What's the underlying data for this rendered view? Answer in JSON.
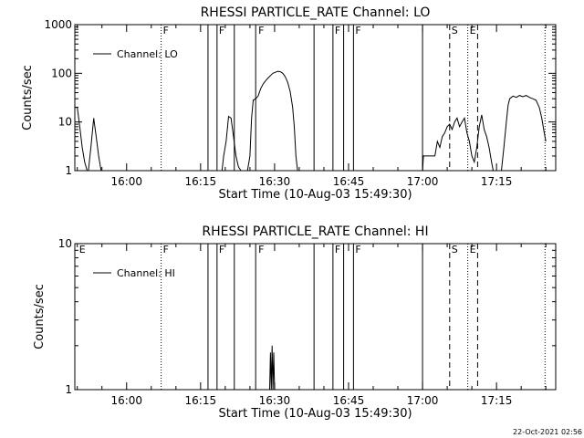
{
  "footer_timestamp": "22-Oct-2021 02:56",
  "chart_data": [
    {
      "type": "line",
      "title": "RHESSI PARTICLE_RATE Channel: LO",
      "xlabel": "Start Time (10-Aug-03 15:49:30)",
      "ylabel": "Counts/sec",
      "y_scale": "log",
      "ylim": [
        1,
        1000
      ],
      "x_range": [
        "15:49:30",
        "17:27:00"
      ],
      "x_ticks": [
        "16:00",
        "16:15",
        "16:30",
        "16:45",
        "17:00",
        "17:15"
      ],
      "y_ticks": [
        "1",
        "10",
        "100",
        "1000"
      ],
      "legend": "Channel: LO",
      "legend_position": "top-left",
      "series": [
        {
          "name": "Channel: LO",
          "segments": [
            [
              [
                "15:49:30",
                20
              ],
              [
                "15:50:00",
                20
              ],
              [
                "15:50:30",
                8
              ],
              [
                "15:51:00",
                3
              ],
              [
                "15:51:30",
                1.5
              ],
              [
                "15:52:00",
                1
              ]
            ],
            [
              [
                "15:52:15",
                1
              ],
              [
                "15:52:45",
                3
              ],
              [
                "15:53:20",
                12
              ],
              [
                "15:53:50",
                5
              ],
              [
                "15:54:20",
                2
              ],
              [
                "15:54:50",
                1
              ]
            ],
            [
              [
                "16:19:20",
                1
              ],
              [
                "16:19:40",
                2
              ],
              [
                "16:20:10",
                4
              ],
              [
                "16:20:40",
                13
              ],
              [
                "16:21:10",
                12
              ],
              [
                "16:21:40",
                5
              ],
              [
                "16:22:10",
                2
              ],
              [
                "16:22:40",
                1.2
              ],
              [
                "16:23:10",
                1
              ]
            ],
            [
              [
                "16:24:30",
                1
              ],
              [
                "16:25:00",
                2
              ],
              [
                "16:25:20",
                12
              ],
              [
                "16:25:40",
                28
              ],
              [
                "16:26:10",
                30
              ],
              [
                "16:26:40",
                34
              ],
              [
                "16:27:10",
                48
              ],
              [
                "16:27:40",
                60
              ],
              [
                "16:28:10",
                70
              ],
              [
                "16:28:40",
                80
              ],
              [
                "16:29:10",
                90
              ],
              [
                "16:29:40",
                100
              ],
              [
                "16:30:10",
                105
              ],
              [
                "16:30:40",
                110
              ],
              [
                "16:31:10",
                108
              ],
              [
                "16:31:40",
                100
              ],
              [
                "16:32:10",
                85
              ],
              [
                "16:32:40",
                65
              ],
              [
                "16:33:10",
                42
              ],
              [
                "16:33:40",
                20
              ],
              [
                "16:34:00",
                8
              ],
              [
                "16:34:20",
                2
              ],
              [
                "16:34:40",
                1
              ]
            ],
            [
              [
                "17:00:00",
                1
              ],
              [
                "17:00:10",
                2
              ],
              [
                "17:01:30",
                2
              ],
              [
                "17:02:30",
                2
              ],
              [
                "17:03:00",
                4
              ],
              [
                "17:03:30",
                3
              ],
              [
                "17:04:00",
                5
              ],
              [
                "17:04:30",
                6
              ],
              [
                "17:05:00",
                8
              ],
              [
                "17:05:30",
                9
              ],
              [
                "17:06:00",
                7
              ],
              [
                "17:06:30",
                10
              ],
              [
                "17:07:00",
                12
              ],
              [
                "17:07:30",
                8
              ],
              [
                "17:08:00",
                10
              ],
              [
                "17:08:30",
                12
              ],
              [
                "17:09:00",
                6
              ],
              [
                "17:09:30",
                4
              ],
              [
                "17:10:00",
                2
              ],
              [
                "17:10:30",
                1.5
              ],
              [
                "17:11:00",
                3
              ],
              [
                "17:11:30",
                8
              ],
              [
                "17:12:00",
                14
              ],
              [
                "17:12:30",
                7
              ],
              [
                "17:13:00",
                5
              ],
              [
                "17:13:30",
                3
              ],
              [
                "17:14:00",
                1.5
              ],
              [
                "17:14:20",
                1
              ]
            ],
            [
              [
                "17:16:00",
                1
              ],
              [
                "17:16:30",
                3
              ],
              [
                "17:17:00",
                10
              ],
              [
                "17:17:20",
                22
              ],
              [
                "17:17:40",
                30
              ],
              [
                "17:18:20",
                34
              ],
              [
                "17:19:00",
                32
              ],
              [
                "17:19:40",
                35
              ],
              [
                "17:20:20",
                33
              ],
              [
                "17:21:00",
                35
              ],
              [
                "17:21:40",
                32
              ],
              [
                "17:22:20",
                30
              ],
              [
                "17:23:00",
                28
              ],
              [
                "17:23:40",
                20
              ],
              [
                "17:24:10",
                12
              ],
              [
                "17:24:40",
                6
              ],
              [
                "17:25:00",
                4
              ]
            ]
          ]
        }
      ],
      "flags": [
        {
          "label": "F",
          "time": "16:07:00"
        },
        {
          "label": "F",
          "time": "16:18:20"
        },
        {
          "label": "F",
          "time": "16:26:20"
        },
        {
          "label": "F",
          "time": "16:41:50"
        },
        {
          "label": "F",
          "time": "16:46:00"
        },
        {
          "label": "S",
          "time": "17:05:30"
        },
        {
          "label": "E",
          "time": "17:09:10"
        }
      ],
      "vertical_lines": {
        "solid": [
          "16:16:30",
          "16:18:20",
          "16:21:50",
          "16:26:10",
          "16:38:00",
          "16:41:50",
          "16:44:00",
          "16:46:00",
          "17:00:00"
        ],
        "dashed": [
          "17:05:30",
          "17:11:10"
        ],
        "dotted": [
          "16:07:00",
          "17:09:10",
          "17:24:50"
        ]
      }
    },
    {
      "type": "line",
      "title": "RHESSI PARTICLE_RATE Channel: HI",
      "xlabel": "Start Time (10-Aug-03 15:49:30)",
      "ylabel": "Counts/sec",
      "y_scale": "log",
      "ylim": [
        1,
        10
      ],
      "x_range": [
        "15:49:30",
        "17:27:00"
      ],
      "x_ticks": [
        "16:00",
        "16:15",
        "16:30",
        "16:45",
        "17:00",
        "17:15"
      ],
      "y_ticks": [
        "1",
        "10"
      ],
      "legend": "Channel: HI",
      "legend_position": "top-left",
      "series": [
        {
          "name": "Channel: HI",
          "segments": [
            [
              [
                "16:29:00",
                1
              ],
              [
                "16:29:10",
                1.8
              ],
              [
                "16:29:20",
                1
              ],
              [
                "16:29:30",
                2
              ],
              [
                "16:29:40",
                1
              ],
              [
                "16:29:50",
                1.8
              ],
              [
                "16:30:00",
                1
              ]
            ]
          ]
        }
      ],
      "flags": [
        {
          "label": "E",
          "time": "15:50:00"
        },
        {
          "label": "F",
          "time": "16:07:00"
        },
        {
          "label": "F",
          "time": "16:18:20"
        },
        {
          "label": "F",
          "time": "16:26:20"
        },
        {
          "label": "F",
          "time": "16:41:50"
        },
        {
          "label": "F",
          "time": "16:46:00"
        },
        {
          "label": "S",
          "time": "17:05:30"
        },
        {
          "label": "E",
          "time": "17:09:10"
        }
      ],
      "vertical_lines": {
        "solid": [
          "16:16:30",
          "16:18:20",
          "16:21:50",
          "16:26:10",
          "16:38:00",
          "16:41:50",
          "16:44:00",
          "16:46:00",
          "17:00:00"
        ],
        "dashed": [
          "17:05:30",
          "17:11:10"
        ],
        "dotted": [
          "16:07:00",
          "17:09:10",
          "17:24:50"
        ]
      }
    }
  ]
}
